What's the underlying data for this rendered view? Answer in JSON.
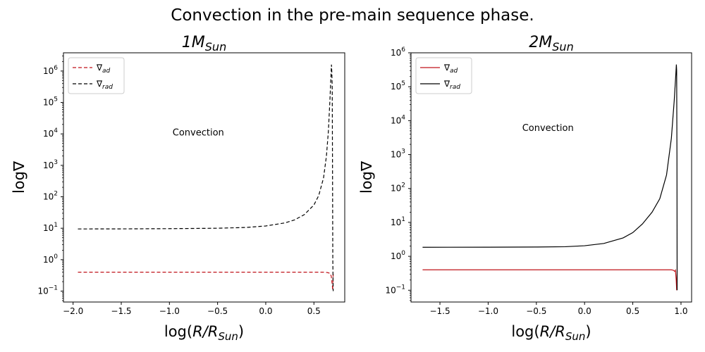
{
  "suptitle": "Convection in the pre-main sequence phase.",
  "chart_data": [
    {
      "type": "line",
      "title": {
        "main": "1M",
        "sub": "Sun"
      },
      "xlabel": {
        "pre": "log(",
        "main": "R/R",
        "sub": "Sun",
        "post": ")"
      },
      "ylabel": "log∇",
      "yscale": "log",
      "xlim": [
        -2.1,
        0.82
      ],
      "ylim": [
        0.045,
        3800000
      ],
      "xticks": [
        -2.0,
        -1.5,
        -1.0,
        -0.5,
        0.0,
        0.5
      ],
      "xtick_labels": [
        "−2.0",
        "−1.5",
        "−1.0",
        "−0.5",
        "0.0",
        "0.5"
      ],
      "ytick_exponents": [
        -1,
        0,
        1,
        2,
        3,
        4,
        5,
        6
      ],
      "annotation": {
        "text": "Convection",
        "x": -0.7,
        "y": 11000
      },
      "legend": {
        "loc": "upper left"
      },
      "series": [
        {
          "name_symbol": "∇",
          "name_sub": "ad",
          "color": "#c0141a",
          "dash": "5,3",
          "points": [
            [
              -1.95,
              0.4
            ],
            [
              -1.5,
              0.4
            ],
            [
              -1.0,
              0.4
            ],
            [
              -0.5,
              0.4
            ],
            [
              0.0,
              0.4
            ],
            [
              0.3,
              0.4
            ],
            [
              0.5,
              0.4
            ],
            [
              0.6,
              0.4
            ],
            [
              0.64,
              0.39
            ],
            [
              0.665,
              0.37
            ],
            [
              0.68,
              0.3
            ],
            [
              0.69,
              0.16
            ],
            [
              0.695,
              0.11
            ],
            [
              0.698,
              0.2
            ],
            [
              0.7,
              0.35
            ]
          ]
        },
        {
          "name_symbol": "∇",
          "name_sub": "rad",
          "color": "#000000",
          "dash": "5,3",
          "points": [
            [
              -1.95,
              9.5
            ],
            [
              -1.5,
              9.55
            ],
            [
              -1.0,
              9.7
            ],
            [
              -0.5,
              10.0
            ],
            [
              -0.2,
              10.6
            ],
            [
              0.0,
              11.8
            ],
            [
              0.2,
              14.8
            ],
            [
              0.3,
              18.5
            ],
            [
              0.4,
              27
            ],
            [
              0.5,
              55
            ],
            [
              0.55,
              110
            ],
            [
              0.6,
              400
            ],
            [
              0.63,
              2000
            ],
            [
              0.65,
              12000
            ],
            [
              0.665,
              100000
            ],
            [
              0.675,
              500000
            ],
            [
              0.682,
              1600000
            ],
            [
              0.686,
              900000
            ],
            [
              0.69,
              300000
            ],
            [
              0.693,
              1000
            ],
            [
              0.696,
              1
            ],
            [
              0.7,
              0.1
            ]
          ]
        }
      ]
    },
    {
      "type": "line",
      "title": {
        "main": "2M",
        "sub": "Sun"
      },
      "xlabel": {
        "pre": "log(",
        "main": "R/R",
        "sub": "Sun",
        "post": ")"
      },
      "ylabel": "log∇",
      "yscale": "log",
      "xlim": [
        -1.8,
        1.11
      ],
      "ylim": [
        0.045,
        1000000
      ],
      "xticks": [
        -1.5,
        -1.0,
        -0.5,
        0.0,
        0.5,
        1.0
      ],
      "xtick_labels": [
        "−1.5",
        "−1.0",
        "−0.5",
        "0.0",
        "0.5",
        "1.0"
      ],
      "ytick_exponents": [
        -1,
        0,
        1,
        2,
        3,
        4,
        5,
        6
      ],
      "annotation": {
        "text": "Convection",
        "x": -0.38,
        "y": 6000
      },
      "legend": {
        "loc": "upper left"
      },
      "series": [
        {
          "name_symbol": "∇",
          "name_sub": "ad",
          "color": "#c0141a",
          "dash": "",
          "points": [
            [
              -1.68,
              0.4
            ],
            [
              -1.0,
              0.4
            ],
            [
              -0.5,
              0.4
            ],
            [
              0.0,
              0.4
            ],
            [
              0.5,
              0.4
            ],
            [
              0.8,
              0.4
            ],
            [
              0.9,
              0.4
            ],
            [
              0.92,
              0.39
            ],
            [
              0.935,
              0.36
            ],
            [
              0.942,
              0.39
            ],
            [
              0.95,
              0.2
            ],
            [
              0.955,
              0.1
            ],
            [
              0.96,
              0.38
            ]
          ]
        },
        {
          "name_symbol": "∇",
          "name_sub": "rad",
          "color": "#000000",
          "dash": "",
          "points": [
            [
              -1.68,
              1.85
            ],
            [
              -1.0,
              1.86
            ],
            [
              -0.5,
              1.88
            ],
            [
              -0.2,
              1.92
            ],
            [
              0.0,
              2.05
            ],
            [
              0.2,
              2.4
            ],
            [
              0.4,
              3.5
            ],
            [
              0.5,
              5.0
            ],
            [
              0.6,
              9.0
            ],
            [
              0.7,
              20
            ],
            [
              0.78,
              50
            ],
            [
              0.85,
              250
            ],
            [
              0.9,
              3000
            ],
            [
              0.93,
              40000
            ],
            [
              0.945,
              200000
            ],
            [
              0.952,
              450000
            ],
            [
              0.955,
              300000
            ],
            [
              0.958,
              1000
            ],
            [
              0.96,
              0.1
            ]
          ]
        }
      ]
    }
  ]
}
